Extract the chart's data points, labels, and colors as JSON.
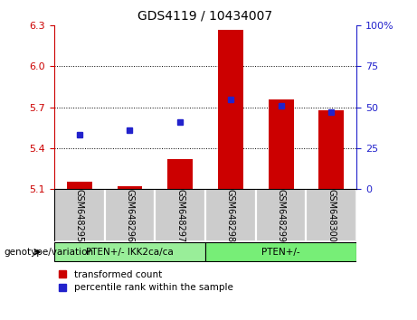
{
  "title": "GDS4119 / 10434007",
  "samples": [
    "GSM648295",
    "GSM648296",
    "GSM648297",
    "GSM648298",
    "GSM648299",
    "GSM648300"
  ],
  "transformed_counts": [
    5.15,
    5.12,
    5.32,
    6.27,
    5.76,
    5.68
  ],
  "percentile_ranks": [
    33,
    36,
    41,
    55,
    51,
    47
  ],
  "y_min": 5.1,
  "y_max": 6.3,
  "y_ticks_left": [
    5.1,
    5.4,
    5.7,
    6.0,
    6.3
  ],
  "y_ticks_right": [
    0,
    25,
    50,
    75,
    100
  ],
  "bar_color": "#cc0000",
  "dot_color": "#2222cc",
  "group_labels": [
    "PTEN+/- IKK2ca/ca",
    "PTEN+/-"
  ],
  "group_ranges": [
    3,
    3
  ],
  "group_color1": "#99ee99",
  "group_color2": "#77ee77",
  "sample_bg_color": "#cccccc",
  "genotype_label": "genotype/variation",
  "legend_red": "transformed count",
  "legend_blue": "percentile rank within the sample",
  "bg_color": "#ffffff",
  "left_axis_color": "#cc0000",
  "right_axis_color": "#2222cc"
}
